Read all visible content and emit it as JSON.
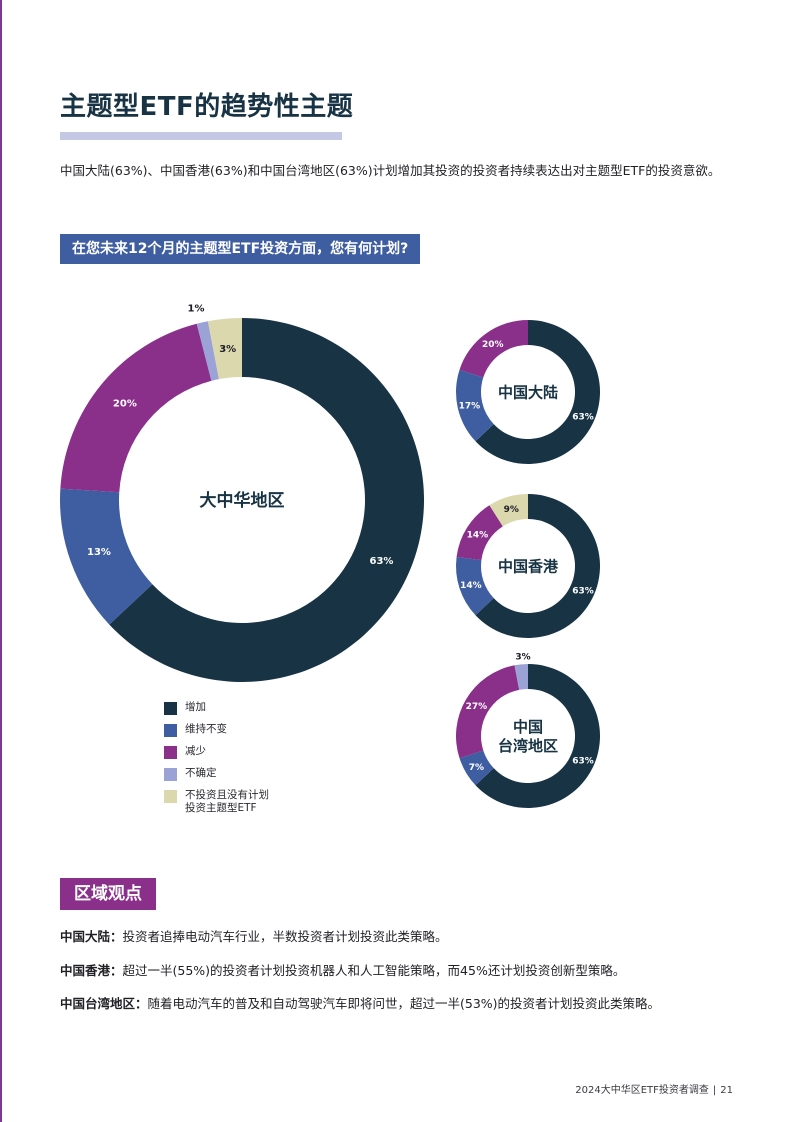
{
  "page": {
    "title": "主题型ETF的趋势性主题",
    "intro": "中国大陆(63%)、中国香港(63%)和中国台湾地区(63%)计划增加其投资的投资者持续表达出对主题型ETF的投资意欲。",
    "question": "在您未来12个月的主题型ETF投资方面，您有何计划?"
  },
  "colors": {
    "increase": "#173344",
    "unchanged": "#3f5ea1",
    "decrease": "#8a2f8a",
    "unsure": "#9aa2d6",
    "no_plan": "#dcd8ae"
  },
  "chart_data": [
    {
      "type": "pie",
      "title": "大中华地区",
      "categories": [
        "增加",
        "维持不变",
        "减少",
        "不确定",
        "不投资且没有计划投资主题型ETF"
      ],
      "values": [
        63,
        13,
        20,
        1,
        3
      ],
      "labels": [
        "63%",
        "13%",
        "20%",
        "1%",
        "3%"
      ]
    },
    {
      "type": "pie",
      "title": "中国大陆",
      "categories": [
        "增加",
        "维持不变",
        "减少"
      ],
      "values": [
        63,
        17,
        20
      ],
      "labels": [
        "63%",
        "17%",
        "20%"
      ]
    },
    {
      "type": "pie",
      "title": "中国香港",
      "categories": [
        "增加",
        "维持不变",
        "减少",
        "不投资且没有计划投资主题型ETF"
      ],
      "values": [
        63,
        14,
        14,
        9
      ],
      "labels": [
        "63%",
        "14%",
        "14%",
        "9%"
      ]
    },
    {
      "type": "pie",
      "title": "中国\n台湾地区",
      "categories": [
        "增加",
        "维持不变",
        "减少",
        "不确定"
      ],
      "values": [
        63,
        7,
        27,
        3
      ],
      "labels": [
        "63%",
        "7%",
        "27%",
        "3%"
      ]
    }
  ],
  "legend": [
    {
      "label": "增加",
      "color_key": "increase"
    },
    {
      "label": "维持不变",
      "color_key": "unchanged"
    },
    {
      "label": "减少",
      "color_key": "decrease"
    },
    {
      "label": "不确定",
      "color_key": "unsure"
    },
    {
      "label": "不投资且没有计划\n投资主题型ETF",
      "color_key": "no_plan"
    }
  ],
  "section": {
    "tag": "区域观点",
    "items": [
      {
        "region": "中国大陆：",
        "text": "投资者追捧电动汽车行业，半数投资者计划投资此类策略。"
      },
      {
        "region": "中国香港：",
        "text": "超过一半(55%)的投资者计划投资机器人和人工智能策略，而45%还计划投资创新型策略。"
      },
      {
        "region": "中国台湾地区：",
        "text": "随着电动汽车的普及和自动驾驶汽车即将问世，超过一半(53%)的投资者计划投资此类策略。"
      }
    ]
  },
  "footer": {
    "doc_title": "2024大中华区ETF投资者调查",
    "separator": "|",
    "page_number": "21"
  }
}
